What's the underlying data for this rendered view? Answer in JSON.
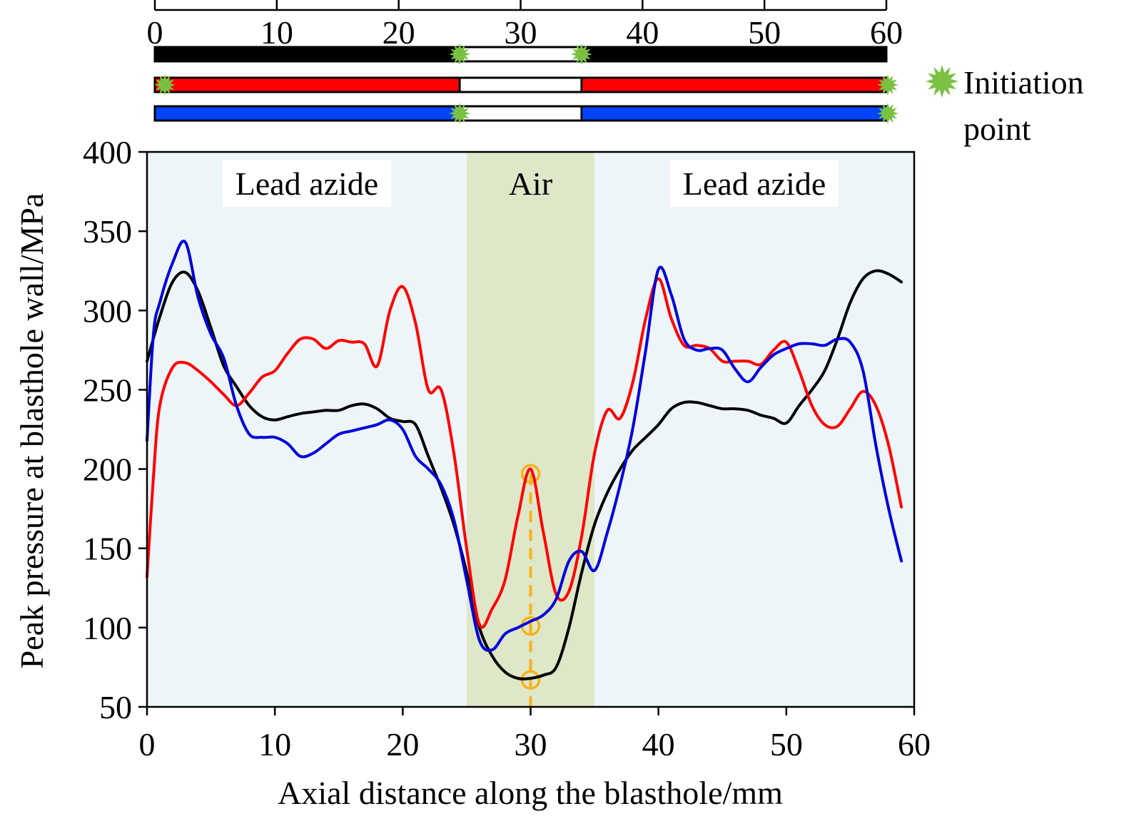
{
  "chart_data": {
    "type": "line",
    "xlabel": "Axial distance along the blasthole/mm",
    "ylabel": "Peak pressure at blasthole wall/MPa",
    "xlim": [
      0,
      60
    ],
    "ylim": [
      50,
      400
    ],
    "x_ticks": [
      "0",
      "10",
      "20",
      "30",
      "40",
      "50",
      "60"
    ],
    "y_ticks": [
      "50",
      "100",
      "150",
      "200",
      "250",
      "300",
      "350",
      "400"
    ],
    "top_scale_ticks": [
      "0",
      "10",
      "20",
      "30",
      "40",
      "50",
      "60"
    ],
    "regions": [
      {
        "label": "Lead azide",
        "x": [
          0,
          25
        ],
        "color": "#edf5f9"
      },
      {
        "label": "Air",
        "x": [
          25,
          35
        ],
        "color": "#dfe7c9"
      },
      {
        "label": "Lead azide",
        "x": [
          35,
          60
        ],
        "color": "#edf5f9"
      }
    ],
    "charge_bars": [
      {
        "color": "#000000",
        "explosive": [
          [
            0,
            25
          ],
          [
            35,
            60
          ]
        ],
        "air": [
          25,
          35
        ],
        "initiation_points": [
          25,
          35
        ]
      },
      {
        "color": "#ff0000",
        "explosive": [
          [
            0,
            25
          ],
          [
            35,
            60
          ]
        ],
        "air": [
          25,
          35
        ],
        "initiation_points": [
          0,
          60
        ]
      },
      {
        "color": "#0044ff",
        "explosive": [
          [
            0,
            25
          ],
          [
            35,
            60
          ]
        ],
        "air": [
          25,
          35
        ],
        "initiation_points": [
          25,
          60
        ]
      }
    ],
    "legend": {
      "label_line1": "Initiation",
      "label_line2": "point",
      "marker_color": "#7ac143",
      "placement": "top-right"
    },
    "series": [
      {
        "color": "#000000",
        "x": [
          0,
          1,
          2,
          3,
          4,
          5,
          6,
          7,
          8,
          9,
          10,
          11,
          12,
          13,
          14,
          15,
          16,
          17,
          18,
          19,
          20,
          21,
          22,
          23,
          24,
          25,
          26,
          27,
          28,
          29,
          30,
          31,
          32,
          33,
          34,
          35,
          36,
          37,
          38,
          39,
          40,
          41,
          42,
          43,
          44,
          45,
          46,
          47,
          48,
          49,
          50,
          51,
          52,
          53,
          54,
          55,
          56,
          57,
          58,
          59
        ],
        "y": [
          268,
          296,
          318,
          324,
          312,
          289,
          265,
          252,
          240,
          233,
          231,
          233,
          235,
          236,
          237,
          237,
          240,
          241,
          238,
          232,
          230,
          228,
          208,
          188,
          165,
          135,
          100,
          82,
          72,
          68,
          68,
          70,
          75,
          100,
          135,
          165,
          185,
          200,
          212,
          220,
          228,
          238,
          242,
          242,
          240,
          238,
          238,
          237,
          234,
          232,
          229,
          240,
          250,
          262,
          282,
          305,
          320,
          325,
          323,
          318
        ]
      },
      {
        "color": "#ff0000",
        "x": [
          0,
          0.5,
          1,
          2,
          3,
          4,
          5,
          6,
          7,
          8,
          9,
          10,
          11,
          12,
          13,
          14,
          15,
          16,
          17,
          18,
          19,
          20,
          21,
          22,
          23,
          24,
          25,
          26,
          27,
          28,
          29,
          30,
          31,
          32,
          33,
          34,
          35,
          36,
          37,
          38,
          39,
          40,
          41,
          42,
          43,
          44,
          45,
          46,
          47,
          48,
          49,
          50,
          51,
          52,
          53,
          54,
          55,
          56,
          57,
          58,
          59
        ],
        "y": [
          132,
          195,
          240,
          264,
          267,
          262,
          255,
          247,
          240,
          248,
          258,
          262,
          273,
          282,
          282,
          276,
          281,
          280,
          279,
          265,
          300,
          315,
          292,
          250,
          250,
          210,
          150,
          102,
          112,
          130,
          170,
          200,
          160,
          121,
          123,
          158,
          210,
          237,
          232,
          255,
          295,
          320,
          295,
          278,
          278,
          276,
          268,
          268,
          268,
          266,
          275,
          280,
          262,
          240,
          228,
          227,
          238,
          249,
          240,
          215,
          176
        ]
      },
      {
        "color": "#0000dd",
        "x": [
          0,
          0.5,
          1,
          2,
          3,
          4,
          5,
          6,
          7,
          8,
          9,
          10,
          11,
          12,
          13,
          14,
          15,
          16,
          17,
          18,
          19,
          20,
          21,
          22,
          23,
          24,
          25,
          26,
          27,
          28,
          29,
          30,
          31,
          32,
          33,
          34,
          35,
          36,
          37,
          38,
          39,
          40,
          41,
          42,
          43,
          44,
          45,
          46,
          47,
          48,
          49,
          50,
          51,
          52,
          53,
          54,
          55,
          56,
          57,
          58,
          59
        ],
        "y": [
          218,
          285,
          305,
          330,
          343,
          308,
          285,
          270,
          240,
          222,
          220,
          220,
          216,
          208,
          210,
          216,
          222,
          224,
          226,
          228,
          231,
          225,
          208,
          200,
          190,
          168,
          130,
          92,
          86,
          96,
          100,
          104,
          108,
          118,
          142,
          148,
          136,
          160,
          190,
          226,
          275,
          326,
          310,
          282,
          275,
          276,
          275,
          263,
          255,
          264,
          272,
          276,
          279,
          279,
          278,
          282,
          280,
          262,
          215,
          175,
          142
        ]
      }
    ],
    "annotation": {
      "color": "#f7b21b",
      "x": 30,
      "points_y": [
        197,
        101,
        67
      ],
      "dashed_vertical_line": true
    }
  }
}
